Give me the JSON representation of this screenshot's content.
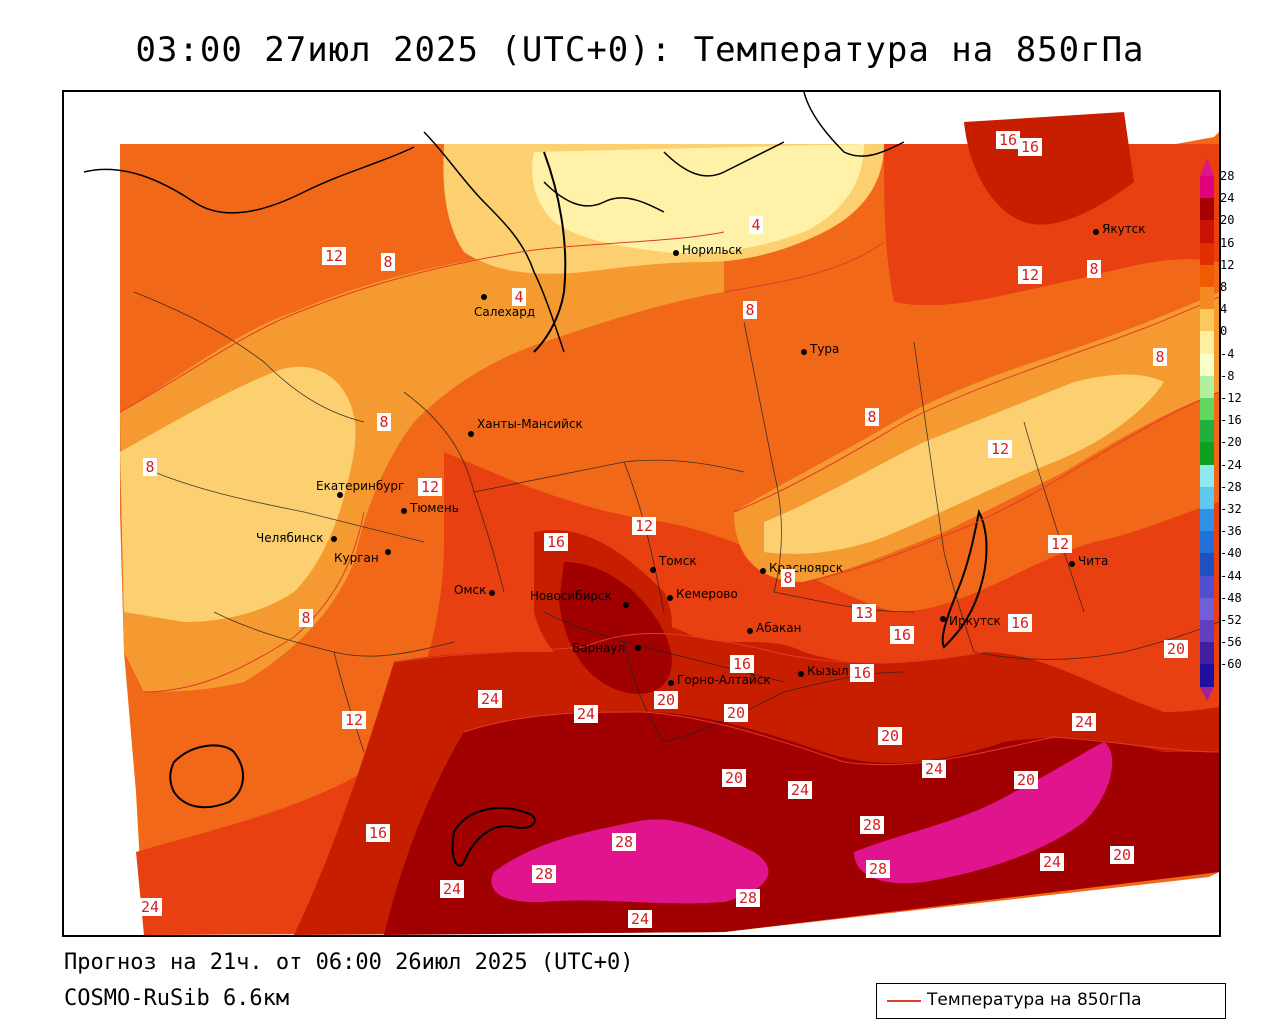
{
  "title": "03:00 27июл 2025 (UTC+0): Температура на 850гПа",
  "footer": {
    "forecast": "Прогноз на 21ч. от 06:00 26июл 2025 (UTC+0)",
    "model": "COSMO-RuSib 6.6км"
  },
  "legend": {
    "label": "Температура на 850гПа",
    "color": "#e23a2a"
  },
  "colorbar": {
    "labels": [
      "28",
      "24",
      "20",
      "16",
      "12",
      "8",
      "4",
      "0",
      "-4",
      "-8",
      "-12",
      "-16",
      "-20",
      "-24",
      "-28",
      "-32",
      "-36",
      "-40",
      "-44",
      "-48",
      "-52",
      "-56",
      "-60"
    ],
    "colors": [
      "#e0007a",
      "#a80000",
      "#c81400",
      "#e03000",
      "#f05a00",
      "#f58a20",
      "#fcc860",
      "#fff0a0",
      "#f8ffc8",
      "#b0f0a0",
      "#60d860",
      "#20b040",
      "#10a020",
      "#90e8f0",
      "#60c8f0",
      "#3090e8",
      "#2070d8",
      "#2050c0",
      "#5050d0",
      "#7060d8",
      "#6040c0",
      "#4020a0",
      "#2010a0"
    ]
  },
  "cities": [
    {
      "name": "Норильск",
      "label": "Норильск"
    },
    {
      "name": "Якутск",
      "label": "Якутск"
    },
    {
      "name": "Салехард",
      "label": "Салехард"
    },
    {
      "name": "Тура",
      "label": "Тура"
    },
    {
      "name": "Ханты-Мансийск",
      "label": "Ханты-Мансийск"
    },
    {
      "name": "Екатеринбург",
      "label": "Екатеринбург"
    },
    {
      "name": "Тюмень",
      "label": "Тюмень"
    },
    {
      "name": "Челябинск",
      "label": "Челябинск"
    },
    {
      "name": "Курган",
      "label": "Курган"
    },
    {
      "name": "Омск",
      "label": "Омск"
    },
    {
      "name": "Новосибирск",
      "label": "Новосибирск"
    },
    {
      "name": "Томск",
      "label": "Томск"
    },
    {
      "name": "Кемерово",
      "label": "Кемерово"
    },
    {
      "name": "Красноярск",
      "label": "Красноярск"
    },
    {
      "name": "Барнаул",
      "label": "Барнаул"
    },
    {
      "name": "Абакан",
      "label": "Абакан"
    },
    {
      "name": "Горно-Алтайск",
      "label": "Горно-Алтайск"
    },
    {
      "name": "Кызыл",
      "label": "Кызыл"
    },
    {
      "name": "Иркутск",
      "label": "Иркутск"
    },
    {
      "name": "Чита",
      "label": "Чита"
    }
  ],
  "contour_labels": [
    "16",
    "16",
    "4",
    "12",
    "8",
    "12",
    "8",
    "8",
    "4",
    "8",
    "8",
    "8",
    "8",
    "12",
    "12",
    "16",
    "12",
    "8",
    "12",
    "13",
    "16",
    "16",
    "16",
    "16",
    "20",
    "24",
    "24",
    "20",
    "20",
    "20",
    "20",
    "24",
    "20",
    "24",
    "24",
    "28",
    "28",
    "28",
    "28",
    "28",
    "24",
    "24",
    "24",
    "20",
    "16",
    "12",
    "24",
    "8"
  ],
  "colors": {
    "t28": "#e0148c",
    "t24": "#a00000",
    "t20": "#c81e00",
    "t16": "#e84010",
    "t12": "#f06818",
    "t8": "#f59a30",
    "t4": "#fcd070",
    "t0": "#fff2a8",
    "contour": "#e23a2a"
  }
}
